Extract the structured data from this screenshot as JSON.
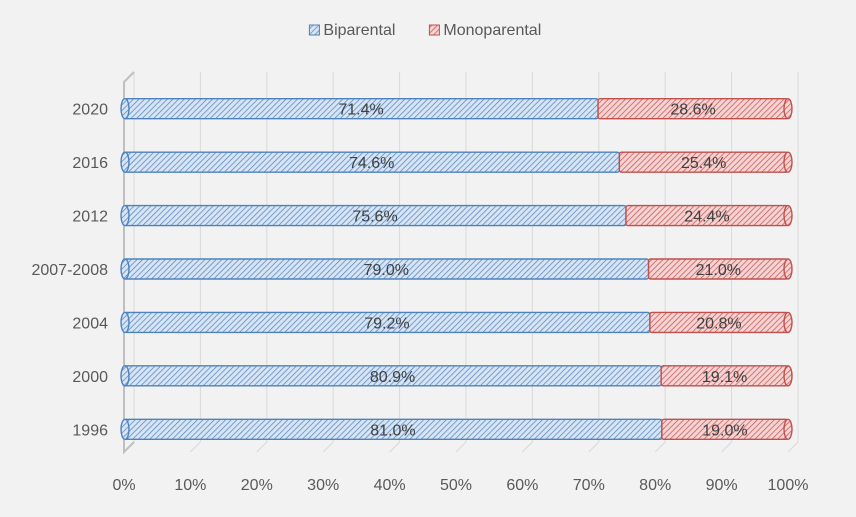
{
  "chart_data": {
    "type": "bar",
    "orientation": "horizontal",
    "stacked": "percent",
    "categories": [
      "2020",
      "2016",
      "2012",
      "2007-2008",
      "2004",
      "2000",
      "1996"
    ],
    "series": [
      {
        "name": "Biparental",
        "values": [
          71.4,
          74.6,
          75.6,
          79.0,
          79.2,
          80.9,
          81.0
        ],
        "labels": [
          "71.4%",
          "74.6%",
          "75.6%",
          "79.0%",
          "79.2%",
          "80.9%",
          "81.0%"
        ],
        "color": "#4f81bd",
        "fill": "#d6e4f3"
      },
      {
        "name": "Monoparental",
        "values": [
          28.6,
          25.4,
          24.4,
          21.0,
          20.8,
          19.1,
          19.0
        ],
        "labels": [
          "28.6%",
          "25.4%",
          "24.4%",
          "21.0%",
          "20.8%",
          "19.1%",
          "19.0%"
        ],
        "color": "#c0504d",
        "fill": "#f5d3d3"
      }
    ],
    "xlim": [
      0,
      100
    ],
    "xticks": [
      "0%",
      "10%",
      "20%",
      "30%",
      "40%",
      "50%",
      "60%",
      "70%",
      "80%",
      "90%",
      "100%"
    ],
    "grid": true,
    "legend_position": "top",
    "title": "",
    "xlabel": "",
    "ylabel": ""
  }
}
